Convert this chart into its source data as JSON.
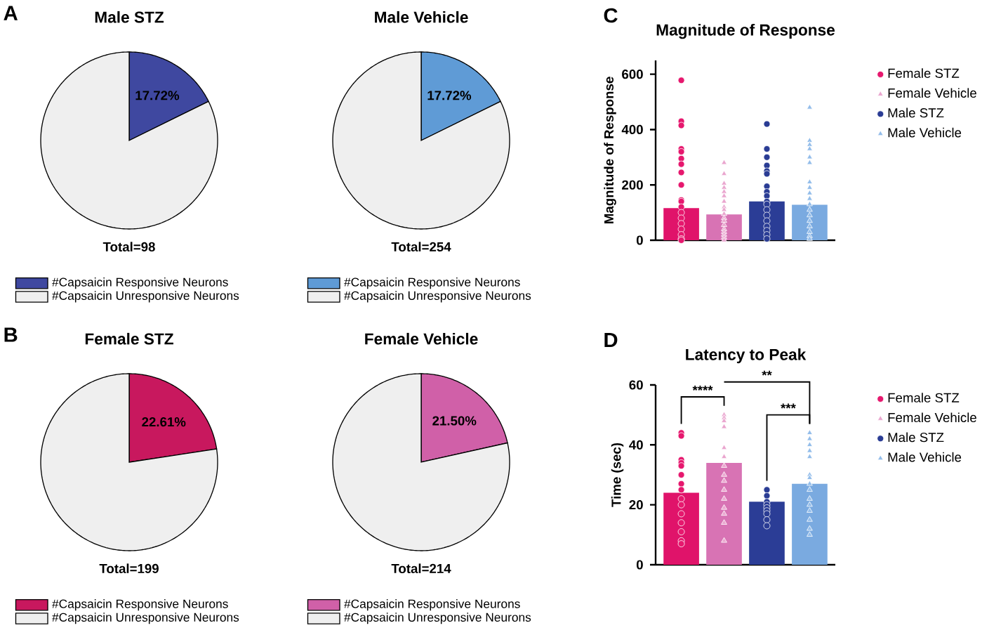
{
  "chart_data": [
    {
      "type": "pie",
      "title": "Male STZ",
      "categories": [
        "#Capsaicin Responsive Neurons",
        "#Capsaicin Unresponsive Neurons"
      ],
      "values": [
        17.72,
        82.28
      ],
      "colors": [
        "#3f48a0",
        "#efefef"
      ],
      "value_labels": [
        "17.72%",
        null
      ],
      "legend": "bottom",
      "annotations": [
        "A",
        "Total=98"
      ]
    },
    {
      "type": "pie",
      "title": "Male Vehicle",
      "categories": [
        "#Capsaicin Responsive Neurons",
        "#Capsaicin Unresponsive Neurons"
      ],
      "values": [
        17.72,
        82.28
      ],
      "colors": [
        "#5f9bd6",
        "#efefef"
      ],
      "value_labels": [
        "17.72%",
        null
      ],
      "legend": "bottom",
      "annotations": [
        "Total=254"
      ]
    },
    {
      "type": "pie",
      "title": "Female STZ",
      "categories": [
        "#Capsaicin Responsive Neurons",
        "#Capsaicin Unresponsive Neurons"
      ],
      "values": [
        22.61,
        77.39
      ],
      "colors": [
        "#c8185e",
        "#efefef"
      ],
      "value_labels": [
        "22.61%",
        null
      ],
      "legend": "bottom",
      "annotations": [
        "B",
        "Total=199"
      ]
    },
    {
      "type": "pie",
      "title": "Female Vehicle",
      "categories": [
        "#Capsaicin Responsive Neurons",
        "#Capsaicin Unresponsive Neurons"
      ],
      "values": [
        21.5,
        78.5
      ],
      "colors": [
        "#d060a8",
        "#efefef"
      ],
      "value_labels": [
        "21.50%",
        null
      ],
      "legend": "bottom",
      "annotations": [
        "Total=214"
      ]
    },
    {
      "type": "bar",
      "title": "Magnitude of  Response",
      "ylabel": "Magnitude of Response",
      "categories": [
        null,
        null,
        null,
        null
      ],
      "values": [
        116,
        93,
        140,
        128
      ],
      "colors": [
        "#e0136a",
        "#d873b4",
        "#2b3d96",
        "#7aaae0"
      ],
      "ylim": [
        0,
        650
      ],
      "yticks": [
        0,
        200,
        400,
        600
      ],
      "legend": "right",
      "annotations": [
        "C"
      ],
      "series": [
        {
          "type": "scatter",
          "name": "Female STZ",
          "color": "#e6186e",
          "marker": "circle",
          "values": [
            578,
            null,
            null,
            null
          ]
        },
        {
          "type": "scatter",
          "name": "Female Vehicle",
          "color": "#eaa6cf",
          "marker": "triangle",
          "values": [
            null,
            280,
            null,
            null
          ]
        },
        {
          "type": "scatter",
          "name": "Male STZ",
          "color": "#2a3c94",
          "marker": "circle",
          "values": [
            null,
            null,
            420,
            null
          ]
        },
        {
          "type": "scatter",
          "name": "Male Vehicle",
          "color": "#93bdea",
          "marker": "triangle",
          "values": [
            null,
            null,
            null,
            480
          ]
        },
        {
          "type": "scatter",
          "color": "#e6186e",
          "marker": "circle",
          "values": [
            430,
            null,
            null,
            null
          ]
        },
        {
          "type": "scatter",
          "color": "#e6186e",
          "marker": "circle",
          "values": [
            415,
            null,
            null,
            null
          ]
        },
        {
          "type": "scatter",
          "color": "#e6186e",
          "marker": "circle",
          "values": [
            330,
            null,
            null,
            null
          ]
        },
        {
          "type": "scatter",
          "color": "#e6186e",
          "marker": "circle",
          "values": [
            320,
            null,
            null,
            null
          ]
        },
        {
          "type": "scatter",
          "color": "#e6186e",
          "marker": "circle",
          "values": [
            295,
            null,
            null,
            null
          ]
        },
        {
          "type": "scatter",
          "color": "#e6186e",
          "marker": "circle",
          "values": [
            275,
            null,
            null,
            null
          ]
        },
        {
          "type": "scatter",
          "color": "#e6186e",
          "marker": "circle",
          "values": [
            245,
            null,
            null,
            null
          ]
        },
        {
          "type": "scatter",
          "color": "#e6186e",
          "marker": "circle",
          "values": [
            200,
            null,
            null,
            null
          ]
        },
        {
          "type": "scatter",
          "color": "#e6186e",
          "marker": "circle",
          "values": [
            145,
            null,
            null,
            null
          ]
        },
        {
          "type": "scatter",
          "color": "#e6186e",
          "marker": "circle",
          "values": [
            140,
            null,
            null,
            null
          ]
        },
        {
          "type": "scatter",
          "color": "#e6186e",
          "marker": "circle",
          "values": [
            120,
            null,
            null,
            null
          ]
        },
        {
          "type": "scatter",
          "color": "#e6186e",
          "marker": "circle",
          "values": [
            100,
            null,
            null,
            null
          ]
        },
        {
          "type": "scatter",
          "color": "#e6186e",
          "marker": "circle",
          "values": [
            80,
            null,
            null,
            null
          ]
        },
        {
          "type": "scatter",
          "color": "#e6186e",
          "marker": "circle",
          "values": [
            60,
            null,
            null,
            null
          ]
        },
        {
          "type": "scatter",
          "color": "#e6186e",
          "marker": "circle",
          "values": [
            40,
            null,
            null,
            null
          ]
        },
        {
          "type": "scatter",
          "color": "#e6186e",
          "marker": "circle",
          "values": [
            20,
            null,
            null,
            null
          ]
        },
        {
          "type": "scatter",
          "color": "#e6186e",
          "marker": "circle",
          "values": [
            5,
            null,
            null,
            null
          ]
        },
        {
          "type": "scatter",
          "color": "#e6186e",
          "marker": "circle",
          "values": [
            0,
            null,
            null,
            null
          ]
        },
        {
          "type": "scatter",
          "color": "#eaa6cf",
          "marker": "triangle",
          "values": [
            null,
            240,
            null,
            null
          ]
        },
        {
          "type": "scatter",
          "color": "#eaa6cf",
          "marker": "triangle",
          "values": [
            null,
            205,
            null,
            null
          ]
        },
        {
          "type": "scatter",
          "color": "#eaa6cf",
          "marker": "triangle",
          "values": [
            null,
            190,
            null,
            null
          ]
        },
        {
          "type": "scatter",
          "color": "#eaa6cf",
          "marker": "triangle",
          "values": [
            null,
            175,
            null,
            null
          ]
        },
        {
          "type": "scatter",
          "color": "#eaa6cf",
          "marker": "triangle",
          "values": [
            null,
            160,
            null,
            null
          ]
        },
        {
          "type": "scatter",
          "color": "#eaa6cf",
          "marker": "triangle",
          "values": [
            null,
            140,
            null,
            null
          ]
        },
        {
          "type": "scatter",
          "color": "#eaa6cf",
          "marker": "triangle",
          "values": [
            null,
            120,
            null,
            null
          ]
        },
        {
          "type": "scatter",
          "color": "#eaa6cf",
          "marker": "triangle",
          "values": [
            null,
            110,
            null,
            null
          ]
        },
        {
          "type": "scatter",
          "color": "#eaa6cf",
          "marker": "triangle",
          "values": [
            null,
            95,
            null,
            null
          ]
        },
        {
          "type": "scatter",
          "color": "#eaa6cf",
          "marker": "triangle",
          "values": [
            null,
            80,
            null,
            null
          ]
        },
        {
          "type": "scatter",
          "color": "#eaa6cf",
          "marker": "triangle",
          "values": [
            null,
            70,
            null,
            null
          ]
        },
        {
          "type": "scatter",
          "color": "#eaa6cf",
          "marker": "triangle",
          "values": [
            null,
            55,
            null,
            null
          ]
        },
        {
          "type": "scatter",
          "color": "#eaa6cf",
          "marker": "triangle",
          "values": [
            null,
            40,
            null,
            null
          ]
        },
        {
          "type": "scatter",
          "color": "#eaa6cf",
          "marker": "triangle",
          "values": [
            null,
            30,
            null,
            null
          ]
        },
        {
          "type": "scatter",
          "color": "#eaa6cf",
          "marker": "triangle",
          "values": [
            null,
            20,
            null,
            null
          ]
        },
        {
          "type": "scatter",
          "color": "#eaa6cf",
          "marker": "triangle",
          "values": [
            null,
            10,
            null,
            null
          ]
        },
        {
          "type": "scatter",
          "color": "#eaa6cf",
          "marker": "triangle",
          "values": [
            null,
            0,
            null,
            null
          ]
        },
        {
          "type": "scatter",
          "color": "#2a3c94",
          "marker": "circle",
          "values": [
            null,
            null,
            330,
            null
          ]
        },
        {
          "type": "scatter",
          "color": "#2a3c94",
          "marker": "circle",
          "values": [
            null,
            null,
            300,
            null
          ]
        },
        {
          "type": "scatter",
          "color": "#2a3c94",
          "marker": "circle",
          "values": [
            null,
            null,
            270,
            null
          ]
        },
        {
          "type": "scatter",
          "color": "#2a3c94",
          "marker": "circle",
          "values": [
            null,
            null,
            250,
            null
          ]
        },
        {
          "type": "scatter",
          "color": "#2a3c94",
          "marker": "circle",
          "values": [
            null,
            null,
            240,
            null
          ]
        },
        {
          "type": "scatter",
          "color": "#2a3c94",
          "marker": "circle",
          "values": [
            null,
            null,
            195,
            null
          ]
        },
        {
          "type": "scatter",
          "color": "#2a3c94",
          "marker": "circle",
          "values": [
            null,
            null,
            175,
            null
          ]
        },
        {
          "type": "scatter",
          "color": "#2a3c94",
          "marker": "circle",
          "values": [
            null,
            null,
            160,
            null
          ]
        },
        {
          "type": "scatter",
          "color": "#2a3c94",
          "marker": "circle",
          "values": [
            null,
            null,
            140,
            null
          ]
        },
        {
          "type": "scatter",
          "color": "#2a3c94",
          "marker": "circle",
          "values": [
            null,
            null,
            130,
            null
          ]
        },
        {
          "type": "scatter",
          "color": "#2a3c94",
          "marker": "circle",
          "values": [
            null,
            null,
            110,
            null
          ]
        },
        {
          "type": "scatter",
          "color": "#2a3c94",
          "marker": "circle",
          "values": [
            null,
            null,
            90,
            null
          ]
        },
        {
          "type": "scatter",
          "color": "#2a3c94",
          "marker": "circle",
          "values": [
            null,
            null,
            70,
            null
          ]
        },
        {
          "type": "scatter",
          "color": "#2a3c94",
          "marker": "circle",
          "values": [
            null,
            null,
            50,
            null
          ]
        },
        {
          "type": "scatter",
          "color": "#2a3c94",
          "marker": "circle",
          "values": [
            null,
            null,
            35,
            null
          ]
        },
        {
          "type": "scatter",
          "color": "#2a3c94",
          "marker": "circle",
          "values": [
            null,
            null,
            20,
            null
          ]
        },
        {
          "type": "scatter",
          "color": "#2a3c94",
          "marker": "circle",
          "values": [
            null,
            null,
            5,
            null
          ]
        },
        {
          "type": "scatter",
          "color": "#93bdea",
          "marker": "triangle",
          "values": [
            null,
            null,
            null,
            360
          ]
        },
        {
          "type": "scatter",
          "color": "#93bdea",
          "marker": "triangle",
          "values": [
            null,
            null,
            null,
            345
          ]
        },
        {
          "type": "scatter",
          "color": "#93bdea",
          "marker": "triangle",
          "values": [
            null,
            null,
            null,
            330
          ]
        },
        {
          "type": "scatter",
          "color": "#93bdea",
          "marker": "triangle",
          "values": [
            null,
            null,
            null,
            300
          ]
        },
        {
          "type": "scatter",
          "color": "#93bdea",
          "marker": "triangle",
          "values": [
            null,
            null,
            null,
            280
          ]
        },
        {
          "type": "scatter",
          "color": "#93bdea",
          "marker": "triangle",
          "values": [
            null,
            null,
            null,
            210
          ]
        },
        {
          "type": "scatter",
          "color": "#93bdea",
          "marker": "triangle",
          "values": [
            null,
            null,
            null,
            190
          ]
        },
        {
          "type": "scatter",
          "color": "#93bdea",
          "marker": "triangle",
          "values": [
            null,
            null,
            null,
            170
          ]
        },
        {
          "type": "scatter",
          "color": "#93bdea",
          "marker": "triangle",
          "values": [
            null,
            null,
            null,
            150
          ]
        },
        {
          "type": "scatter",
          "color": "#93bdea",
          "marker": "triangle",
          "values": [
            null,
            null,
            null,
            130
          ]
        },
        {
          "type": "scatter",
          "color": "#93bdea",
          "marker": "triangle",
          "values": [
            null,
            null,
            null,
            110
          ]
        },
        {
          "type": "scatter",
          "color": "#93bdea",
          "marker": "triangle",
          "values": [
            null,
            null,
            null,
            90
          ]
        },
        {
          "type": "scatter",
          "color": "#93bdea",
          "marker": "triangle",
          "values": [
            null,
            null,
            null,
            70
          ]
        },
        {
          "type": "scatter",
          "color": "#93bdea",
          "marker": "triangle",
          "values": [
            null,
            null,
            null,
            50
          ]
        },
        {
          "type": "scatter",
          "color": "#93bdea",
          "marker": "triangle",
          "values": [
            null,
            null,
            null,
            30
          ]
        },
        {
          "type": "scatter",
          "color": "#93bdea",
          "marker": "triangle",
          "values": [
            null,
            null,
            null,
            15
          ]
        },
        {
          "type": "scatter",
          "color": "#93bdea",
          "marker": "triangle",
          "values": [
            null,
            null,
            null,
            5
          ]
        }
      ]
    },
    {
      "type": "bar",
      "title": "Latency to Peak",
      "ylabel": "Time (sec)",
      "categories": [
        null,
        null,
        null,
        null
      ],
      "values": [
        24,
        34,
        21,
        27
      ],
      "colors": [
        "#e0136a",
        "#d873b4",
        "#2b3d96",
        "#7aaae0"
      ],
      "ylim": [
        0,
        60
      ],
      "yticks": [
        0,
        20,
        40,
        60
      ],
      "legend": "right",
      "annotations": [
        "D",
        "****",
        "**",
        "***"
      ],
      "series": [
        {
          "type": "scatter",
          "name": "Female STZ",
          "color": "#e6186e",
          "marker": "circle",
          "values": [
            44,
            null,
            null,
            null
          ]
        },
        {
          "type": "scatter",
          "name": "Female Vehicle",
          "color": "#eaa6cf",
          "marker": "triangle",
          "values": [
            null,
            50,
            null,
            null
          ]
        },
        {
          "type": "scatter",
          "name": "Male STZ",
          "color": "#2a3c94",
          "marker": "circle",
          "values": [
            null,
            null,
            25,
            null
          ]
        },
        {
          "type": "scatter",
          "name": "Male Vehicle",
          "color": "#93bdea",
          "marker": "triangle",
          "values": [
            null,
            null,
            null,
            44
          ]
        },
        {
          "type": "scatter",
          "color": "#e6186e",
          "marker": "circle",
          "values": [
            43,
            null,
            null,
            null
          ]
        },
        {
          "type": "scatter",
          "color": "#e6186e",
          "marker": "circle",
          "values": [
            35,
            null,
            null,
            null
          ]
        },
        {
          "type": "scatter",
          "color": "#e6186e",
          "marker": "circle",
          "values": [
            34,
            null,
            null,
            null
          ]
        },
        {
          "type": "scatter",
          "color": "#e6186e",
          "marker": "circle",
          "values": [
            33,
            null,
            null,
            null
          ]
        },
        {
          "type": "scatter",
          "color": "#e6186e",
          "marker": "circle",
          "values": [
            30,
            null,
            null,
            null
          ]
        },
        {
          "type": "scatter",
          "color": "#e6186e",
          "marker": "circle",
          "values": [
            27,
            null,
            null,
            null
          ]
        },
        {
          "type": "scatter",
          "color": "#e6186e",
          "marker": "circle",
          "values": [
            25,
            null,
            null,
            null
          ]
        },
        {
          "type": "scatter",
          "color": "#e6186e",
          "marker": "circle",
          "values": [
            22,
            null,
            null,
            null
          ]
        },
        {
          "type": "scatter",
          "color": "#e6186e",
          "marker": "circle",
          "values": [
            20,
            null,
            null,
            null
          ]
        },
        {
          "type": "scatter",
          "color": "#e6186e",
          "marker": "circle",
          "values": [
            17,
            null,
            null,
            null
          ]
        },
        {
          "type": "scatter",
          "color": "#e6186e",
          "marker": "circle",
          "values": [
            14,
            null,
            null,
            null
          ]
        },
        {
          "type": "scatter",
          "color": "#e6186e",
          "marker": "circle",
          "values": [
            11,
            null,
            null,
            null
          ]
        },
        {
          "type": "scatter",
          "color": "#e6186e",
          "marker": "circle",
          "values": [
            8,
            null,
            null,
            null
          ]
        },
        {
          "type": "scatter",
          "color": "#e6186e",
          "marker": "circle",
          "values": [
            7,
            null,
            null,
            null
          ]
        },
        {
          "type": "scatter",
          "color": "#eaa6cf",
          "marker": "triangle",
          "values": [
            null,
            49,
            null,
            null
          ]
        },
        {
          "type": "scatter",
          "color": "#eaa6cf",
          "marker": "triangle",
          "values": [
            null,
            48,
            null,
            null
          ]
        },
        {
          "type": "scatter",
          "color": "#eaa6cf",
          "marker": "triangle",
          "values": [
            null,
            46,
            null,
            null
          ]
        },
        {
          "type": "scatter",
          "color": "#eaa6cf",
          "marker": "triangle",
          "values": [
            null,
            39,
            null,
            null
          ]
        },
        {
          "type": "scatter",
          "color": "#eaa6cf",
          "marker": "triangle",
          "values": [
            null,
            36,
            null,
            null
          ]
        },
        {
          "type": "scatter",
          "color": "#eaa6cf",
          "marker": "triangle",
          "values": [
            null,
            33,
            null,
            null
          ]
        },
        {
          "type": "scatter",
          "color": "#eaa6cf",
          "marker": "triangle",
          "values": [
            null,
            30,
            null,
            null
          ]
        },
        {
          "type": "scatter",
          "color": "#eaa6cf",
          "marker": "triangle",
          "values": [
            null,
            28,
            null,
            null
          ]
        },
        {
          "type": "scatter",
          "color": "#eaa6cf",
          "marker": "triangle",
          "values": [
            null,
            25,
            null,
            null
          ]
        },
        {
          "type": "scatter",
          "color": "#eaa6cf",
          "marker": "triangle",
          "values": [
            null,
            22,
            null,
            null
          ]
        },
        {
          "type": "scatter",
          "color": "#eaa6cf",
          "marker": "triangle",
          "values": [
            null,
            19,
            null,
            null
          ]
        },
        {
          "type": "scatter",
          "color": "#eaa6cf",
          "marker": "triangle",
          "values": [
            null,
            17,
            null,
            null
          ]
        },
        {
          "type": "scatter",
          "color": "#eaa6cf",
          "marker": "triangle",
          "values": [
            null,
            14,
            null,
            null
          ]
        },
        {
          "type": "scatter",
          "color": "#eaa6cf",
          "marker": "triangle",
          "values": [
            null,
            8,
            null,
            null
          ]
        },
        {
          "type": "scatter",
          "color": "#2a3c94",
          "marker": "circle",
          "values": [
            null,
            null,
            23,
            null
          ]
        },
        {
          "type": "scatter",
          "color": "#2a3c94",
          "marker": "circle",
          "values": [
            null,
            null,
            21,
            null
          ]
        },
        {
          "type": "scatter",
          "color": "#2a3c94",
          "marker": "circle",
          "values": [
            null,
            null,
            20,
            null
          ]
        },
        {
          "type": "scatter",
          "color": "#2a3c94",
          "marker": "circle",
          "values": [
            null,
            null,
            19,
            null
          ]
        },
        {
          "type": "scatter",
          "color": "#2a3c94",
          "marker": "circle",
          "values": [
            null,
            null,
            18,
            null
          ]
        },
        {
          "type": "scatter",
          "color": "#2a3c94",
          "marker": "circle",
          "values": [
            null,
            null,
            17,
            null
          ]
        },
        {
          "type": "scatter",
          "color": "#2a3c94",
          "marker": "circle",
          "values": [
            null,
            null,
            15,
            null
          ]
        },
        {
          "type": "scatter",
          "color": "#2a3c94",
          "marker": "circle",
          "values": [
            null,
            null,
            13,
            null
          ]
        },
        {
          "type": "scatter",
          "color": "#93bdea",
          "marker": "triangle",
          "values": [
            null,
            null,
            null,
            42
          ]
        },
        {
          "type": "scatter",
          "color": "#93bdea",
          "marker": "triangle",
          "values": [
            null,
            null,
            null,
            40
          ]
        },
        {
          "type": "scatter",
          "color": "#93bdea",
          "marker": "triangle",
          "values": [
            null,
            null,
            null,
            38
          ]
        },
        {
          "type": "scatter",
          "color": "#93bdea",
          "marker": "triangle",
          "values": [
            null,
            null,
            null,
            36
          ]
        },
        {
          "type": "scatter",
          "color": "#93bdea",
          "marker": "triangle",
          "values": [
            null,
            null,
            null,
            30
          ]
        },
        {
          "type": "scatter",
          "color": "#93bdea",
          "marker": "triangle",
          "values": [
            null,
            null,
            null,
            29
          ]
        },
        {
          "type": "scatter",
          "color": "#93bdea",
          "marker": "triangle",
          "values": [
            null,
            null,
            null,
            27
          ]
        },
        {
          "type": "scatter",
          "color": "#93bdea",
          "marker": "triangle",
          "values": [
            null,
            null,
            null,
            25
          ]
        },
        {
          "type": "scatter",
          "color": "#93bdea",
          "marker": "triangle",
          "values": [
            null,
            null,
            null,
            22
          ]
        },
        {
          "type": "scatter",
          "color": "#93bdea",
          "marker": "triangle",
          "values": [
            null,
            null,
            null,
            20
          ]
        },
        {
          "type": "scatter",
          "color": "#93bdea",
          "marker": "triangle",
          "values": [
            null,
            null,
            null,
            18
          ]
        },
        {
          "type": "scatter",
          "color": "#93bdea",
          "marker": "triangle",
          "values": [
            null,
            null,
            null,
            15
          ]
        },
        {
          "type": "scatter",
          "color": "#93bdea",
          "marker": "triangle",
          "values": [
            null,
            null,
            null,
            12
          ]
        },
        {
          "type": "scatter",
          "color": "#93bdea",
          "marker": "triangle",
          "values": [
            null,
            null,
            null,
            10
          ]
        }
      ]
    }
  ]
}
